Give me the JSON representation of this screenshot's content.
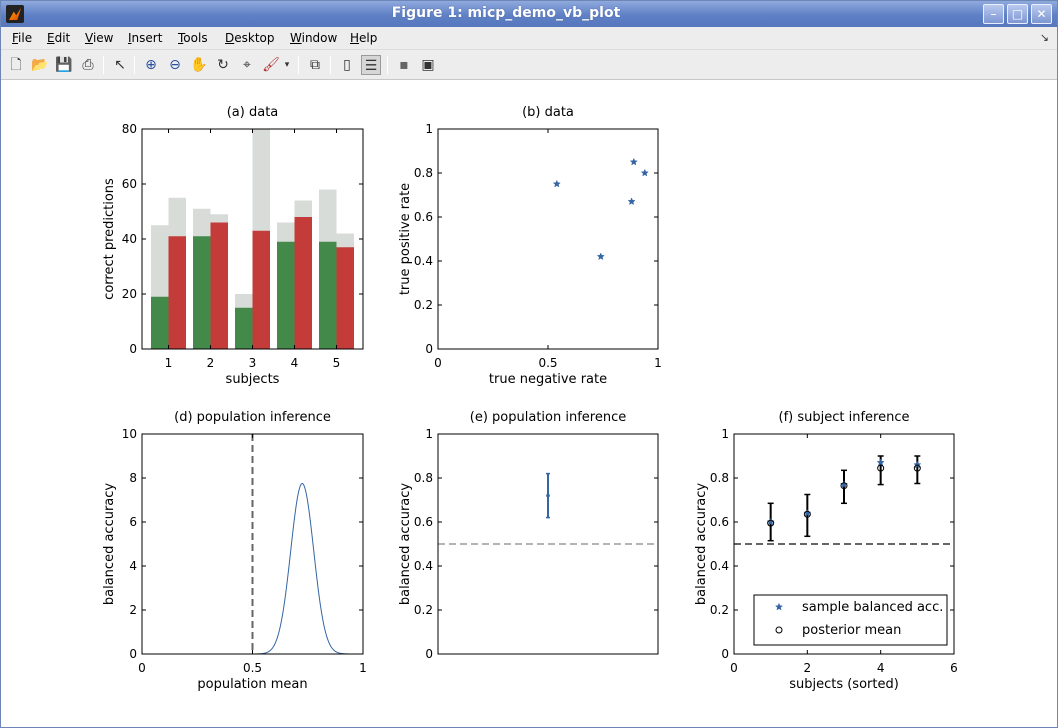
{
  "window": {
    "title": "Figure 1: micp_demo_vb_plot",
    "controls": {
      "minimize": "–",
      "maximize": "□",
      "close": "✕"
    }
  },
  "menubar": {
    "items": [
      {
        "label": "File",
        "mnemonic": "F"
      },
      {
        "label": "Edit",
        "mnemonic": "E"
      },
      {
        "label": "View",
        "mnemonic": "V"
      },
      {
        "label": "Insert",
        "mnemonic": "I"
      },
      {
        "label": "Tools",
        "mnemonic": "T"
      },
      {
        "label": "Desktop",
        "mnemonic": "D"
      },
      {
        "label": "Window",
        "mnemonic": "W"
      },
      {
        "label": "Help",
        "mnemonic": "H"
      }
    ],
    "overflow_icon": "↘"
  },
  "toolbar": {
    "items": [
      "new-figure-icon",
      "open-file-icon",
      "save-icon",
      "print-icon",
      "select-arrow-icon",
      "zoom-in-icon",
      "zoom-out-icon",
      "pan-hand-icon",
      "rotate-3d-icon",
      "data-cursor-icon",
      "brush-icon",
      "brush-dropdown-icon",
      "link-plot-icon",
      "colorbar-icon",
      "legend-icon",
      "hide-plot-tools-icon",
      "show-plot-tools-icon"
    ]
  },
  "chart_data": [
    {
      "id": "a",
      "type": "bar",
      "title": "(a)  data",
      "xlabel": "subjects",
      "ylabel": "correct predictions",
      "categories": [
        "1",
        "2",
        "3",
        "4",
        "5"
      ],
      "ylim": [
        0,
        80
      ],
      "yticks": [
        0,
        20,
        40,
        60,
        80
      ],
      "series": [
        {
          "role": "total-class-1",
          "color": "#d7dcd8",
          "values": [
            45,
            51,
            20,
            46,
            58
          ]
        },
        {
          "role": "total-class-2",
          "color": "#d7dcd8",
          "values": [
            55,
            49,
            80,
            54,
            42
          ]
        },
        {
          "role": "correct-class-1",
          "color": "#438a4a",
          "values": [
            19,
            41,
            15,
            39,
            39
          ]
        },
        {
          "role": "correct-class-2",
          "color": "#c43c39",
          "values": [
            41,
            46,
            43,
            48,
            37
          ]
        }
      ]
    },
    {
      "id": "b",
      "type": "scatter",
      "title": "(b)  data",
      "xlabel": "true negative rate",
      "ylabel": "true positive rate",
      "xlim": [
        0,
        1
      ],
      "ylim": [
        0,
        1
      ],
      "xticks": [
        0,
        0.5,
        1
      ],
      "yticks": [
        0,
        0.2,
        0.4,
        0.6,
        0.8,
        1
      ],
      "color": "#3465a4",
      "points": [
        {
          "x": 0.54,
          "y": 0.75
        },
        {
          "x": 0.74,
          "y": 0.42
        },
        {
          "x": 0.88,
          "y": 0.67
        },
        {
          "x": 0.89,
          "y": 0.85
        },
        {
          "x": 0.94,
          "y": 0.8
        }
      ]
    },
    {
      "id": "d",
      "type": "line",
      "title": "(d)  population inference",
      "xlabel": "population mean",
      "ylabel": "balanced accuracy",
      "xlim": [
        0,
        1
      ],
      "ylim": [
        0,
        10
      ],
      "xticks": [
        0,
        0.5,
        1
      ],
      "yticks": [
        0,
        2,
        4,
        6,
        8,
        10
      ],
      "color": "#3465a4",
      "density": {
        "mean": 0.725,
        "sd": 0.052,
        "peak": 7.75
      },
      "reference_line_x": 0.5
    },
    {
      "id": "e",
      "type": "scatter",
      "title": "(e)  population inference",
      "xlabel": "",
      "ylabel": "balanced accuracy",
      "ylim": [
        0,
        1
      ],
      "yticks": [
        0,
        0.2,
        0.4,
        0.6,
        0.8,
        1
      ],
      "color": "#3465a4",
      "interval": {
        "mean": 0.72,
        "lower": 0.62,
        "upper": 0.82
      },
      "reference_line_y": 0.5
    },
    {
      "id": "f",
      "type": "scatter",
      "title": "(f)  subject inference",
      "xlabel": "subjects (sorted)",
      "ylabel": "balanced accuracy",
      "xlim": [
        0,
        6
      ],
      "ylim": [
        0,
        1
      ],
      "xticks": [
        0,
        2,
        4,
        6
      ],
      "yticks": [
        0,
        0.2,
        0.4,
        0.6,
        0.8,
        1
      ],
      "reference_line_y": 0.5,
      "points": [
        {
          "x": 1,
          "sample": 0.6,
          "mean": 0.595,
          "lower": 0.515,
          "upper": 0.685
        },
        {
          "x": 2,
          "sample": 0.64,
          "mean": 0.635,
          "lower": 0.535,
          "upper": 0.725
        },
        {
          "x": 3,
          "sample": 0.77,
          "mean": 0.765,
          "lower": 0.685,
          "upper": 0.835
        },
        {
          "x": 4,
          "sample": 0.87,
          "mean": 0.845,
          "lower": 0.77,
          "upper": 0.9
        },
        {
          "x": 5,
          "sample": 0.86,
          "mean": 0.845,
          "lower": 0.775,
          "upper": 0.9
        }
      ],
      "legend": {
        "placement": "lower-right",
        "entries": [
          {
            "label": "sample balanced acc.",
            "marker": "star",
            "color": "#3465a4"
          },
          {
            "label": "posterior mean",
            "marker": "circle",
            "color": "#000000"
          }
        ]
      }
    }
  ]
}
